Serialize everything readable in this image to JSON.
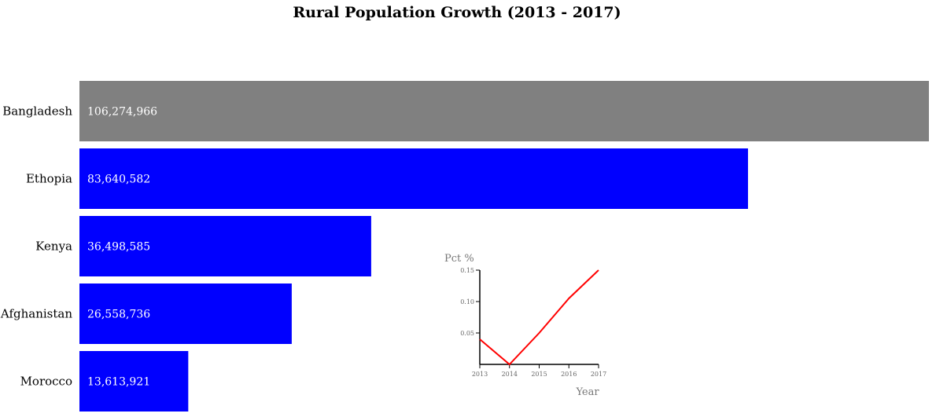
{
  "chart_data": [
    {
      "type": "bar",
      "orientation": "horizontal",
      "title": "Rural Population Growth (2013 - 2017)",
      "categories": [
        "Bangladesh",
        "Ethopia",
        "Kenya",
        "Afghanistan",
        "Morocco"
      ],
      "values": [
        106274966,
        83640582,
        36498585,
        26558736,
        13613921
      ],
      "value_labels": [
        "106,274,966",
        "83,640,582",
        "36,498,585",
        "26,558,736",
        "13,613,921"
      ],
      "bar_colors": [
        "#808080",
        "#0000ff",
        "#0000ff",
        "#0000ff",
        "#0000ff"
      ],
      "xlim": [
        0,
        106274966
      ]
    },
    {
      "type": "line",
      "xlabel": "Year",
      "ylabel": "Pct %",
      "x": [
        "2013",
        "2014",
        "2015",
        "2016",
        "2017"
      ],
      "y": [
        0.04,
        0.0,
        0.05,
        0.105,
        0.15
      ],
      "line_color": "#ff0000",
      "ylim": [
        0,
        0.15
      ],
      "yticks": [
        "0.05",
        "0.10",
        "0.15"
      ],
      "xticks": [
        "2013",
        "2014",
        "2015",
        "2016",
        "2017"
      ]
    }
  ]
}
